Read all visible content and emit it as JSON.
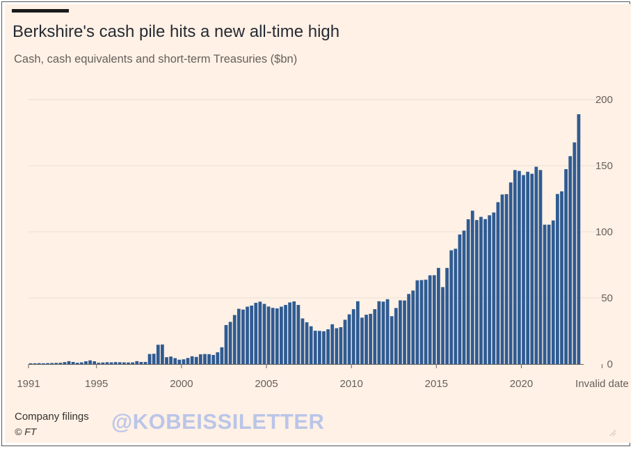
{
  "header": {
    "title": "Berkshire's cash pile hits a new all-time high",
    "subtitle": "Cash, cash equivalents and short-term Treasuries ($bn)"
  },
  "footer": {
    "source": "Company filings",
    "copyright": "© FT",
    "watermark": "@KOBEISSILETTER"
  },
  "colors": {
    "bar": "#2f5b92",
    "gridline": "#eadfd4",
    "baseline": "#66605c",
    "background": "#fff1e5"
  },
  "icons": [
    "resize-corner-icon"
  ],
  "chart_data": {
    "type": "bar",
    "title": "Berkshire's cash pile hits a new all-time high",
    "ylabel": "Cash, cash equivalents and short-term Treasuries ($bn)",
    "xlabel": "",
    "ylim": [
      0,
      200
    ],
    "yticks": [
      0,
      50,
      100,
      150,
      200
    ],
    "y_axis_position": "right",
    "grid": true,
    "xticks": [
      {
        "label": "1991",
        "year": 1991
      },
      {
        "label": "1995",
        "year": 1995
      },
      {
        "label": "2000",
        "year": 2000
      },
      {
        "label": "2005",
        "year": 2005
      },
      {
        "label": "2010",
        "year": 2010
      },
      {
        "label": "2015",
        "year": 2015
      },
      {
        "label": "2020",
        "year": 2020
      },
      {
        "label": "Invalid date",
        "year": 2024.75
      }
    ],
    "x_start": "1991",
    "frequency": "quarterly",
    "values": [
      0.6,
      0.6,
      0.7,
      0.6,
      0.7,
      0.8,
      0.9,
      1,
      1.5,
      2.2,
      1.6,
      1,
      1.3,
      2.1,
      2.8,
      2.1,
      1,
      1.2,
      1.4,
      1.3,
      1.5,
      1.4,
      1.3,
      1.2,
      1.3,
      2.2,
      1.6,
      1.6,
      7.6,
      7.8,
      14.6,
      14.8,
      5.2,
      5.7,
      4.5,
      3.3,
      3.6,
      4.6,
      5.9,
      5.4,
      7.4,
      7.6,
      7.5,
      6.9,
      8.9,
      12.7,
      29.5,
      31.9,
      37.1,
      41.8,
      41.2,
      43.4,
      44.2,
      46.3,
      47.2,
      45.5,
      43.5,
      42.5,
      42.1,
      43.4,
      44.7,
      46.6,
      47.4,
      44.7,
      34.5,
      31.6,
      28.6,
      25.2,
      25.1,
      24.8,
      26.3,
      30.1,
      27.1,
      27.9,
      33.5,
      37.6,
      41.5,
      47.5,
      35.1,
      37.3,
      38,
      41.5,
      47.5,
      47.2,
      49,
      36.2,
      42.4,
      48.2,
      48.1,
      53,
      55.6,
      63.3,
      63.5,
      63.8,
      67.1,
      67.2,
      72.7,
      58.2,
      72.7,
      86,
      87.2,
      98,
      100.9,
      109.5,
      116,
      108.9,
      111.3,
      109.6,
      112.5,
      114.6,
      122.4,
      128.2,
      128.5,
      137.3,
      146.7,
      146,
      142.9,
      145.4,
      143.9,
      149.2,
      146.7,
      105.4,
      105.4,
      108.6,
      128.6,
      130.6,
      147.4,
      157.2,
      167.6,
      188.9
    ]
  }
}
